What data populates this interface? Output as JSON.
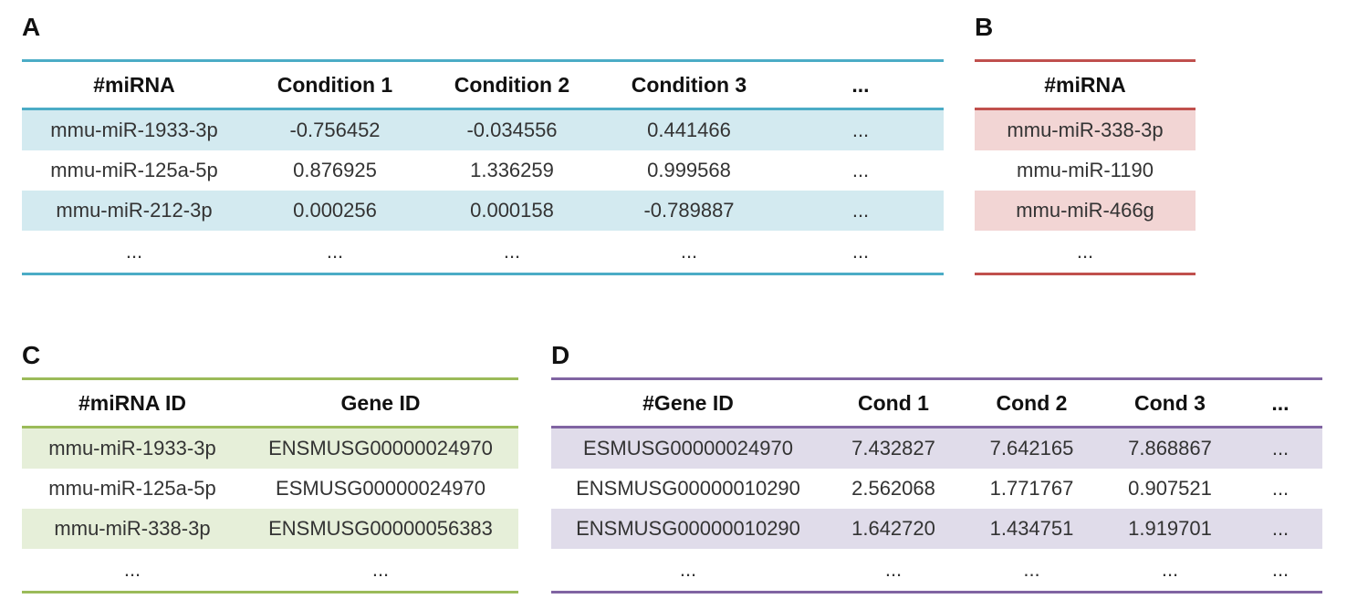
{
  "panels": {
    "A": {
      "label": "A",
      "accent": "#4bacc6",
      "stripe": "#d3eaf0",
      "headers": [
        "#miRNA",
        "Condition 1",
        "Condition 2",
        "Condition 3",
        "..."
      ],
      "rows": [
        [
          "mmu-miR-1933-3p",
          "-0.756452",
          "-0.034556",
          "0.441466",
          "..."
        ],
        [
          "mmu-miR-125a-5p",
          "0.876925",
          "1.336259",
          "0.999568",
          "..."
        ],
        [
          "mmu-miR-212-3p",
          "0.000256",
          "0.000158",
          "-0.789887",
          "..."
        ],
        [
          "...",
          "...",
          "...",
          "...",
          "..."
        ]
      ]
    },
    "B": {
      "label": "B",
      "accent": "#c0504d",
      "stripe": "#f2d5d4",
      "headers": [
        "#miRNA"
      ],
      "rows": [
        [
          "mmu-miR-338-3p"
        ],
        [
          "mmu-miR-1190"
        ],
        [
          "mmu-miR-466g"
        ],
        [
          "..."
        ]
      ]
    },
    "C": {
      "label": "C",
      "accent": "#9bbb59",
      "stripe": "#e6efd9",
      "headers": [
        "#miRNA ID",
        "Gene ID"
      ],
      "rows": [
        [
          "mmu-miR-1933-3p",
          "ENSMUSG00000024970"
        ],
        [
          "mmu-miR-125a-5p",
          "ESMUSG00000024970"
        ],
        [
          "mmu-miR-338-3p",
          "ENSMUSG00000056383"
        ],
        [
          "...",
          "..."
        ]
      ]
    },
    "D": {
      "label": "D",
      "accent": "#8064a2",
      "stripe": "#e0dcea",
      "headers": [
        "#Gene ID",
        "Cond 1",
        "Cond 2",
        "Cond 3",
        "..."
      ],
      "rows": [
        [
          "ESMUSG00000024970",
          "7.432827",
          "7.642165",
          "7.868867",
          "..."
        ],
        [
          "ENSMUSG00000010290",
          "2.562068",
          "1.771767",
          "0.907521",
          "..."
        ],
        [
          "ENSMUSG00000010290",
          "1.642720",
          "1.434751",
          "1.919701",
          "..."
        ],
        [
          "...",
          "...",
          "...",
          "...",
          "..."
        ]
      ]
    }
  }
}
